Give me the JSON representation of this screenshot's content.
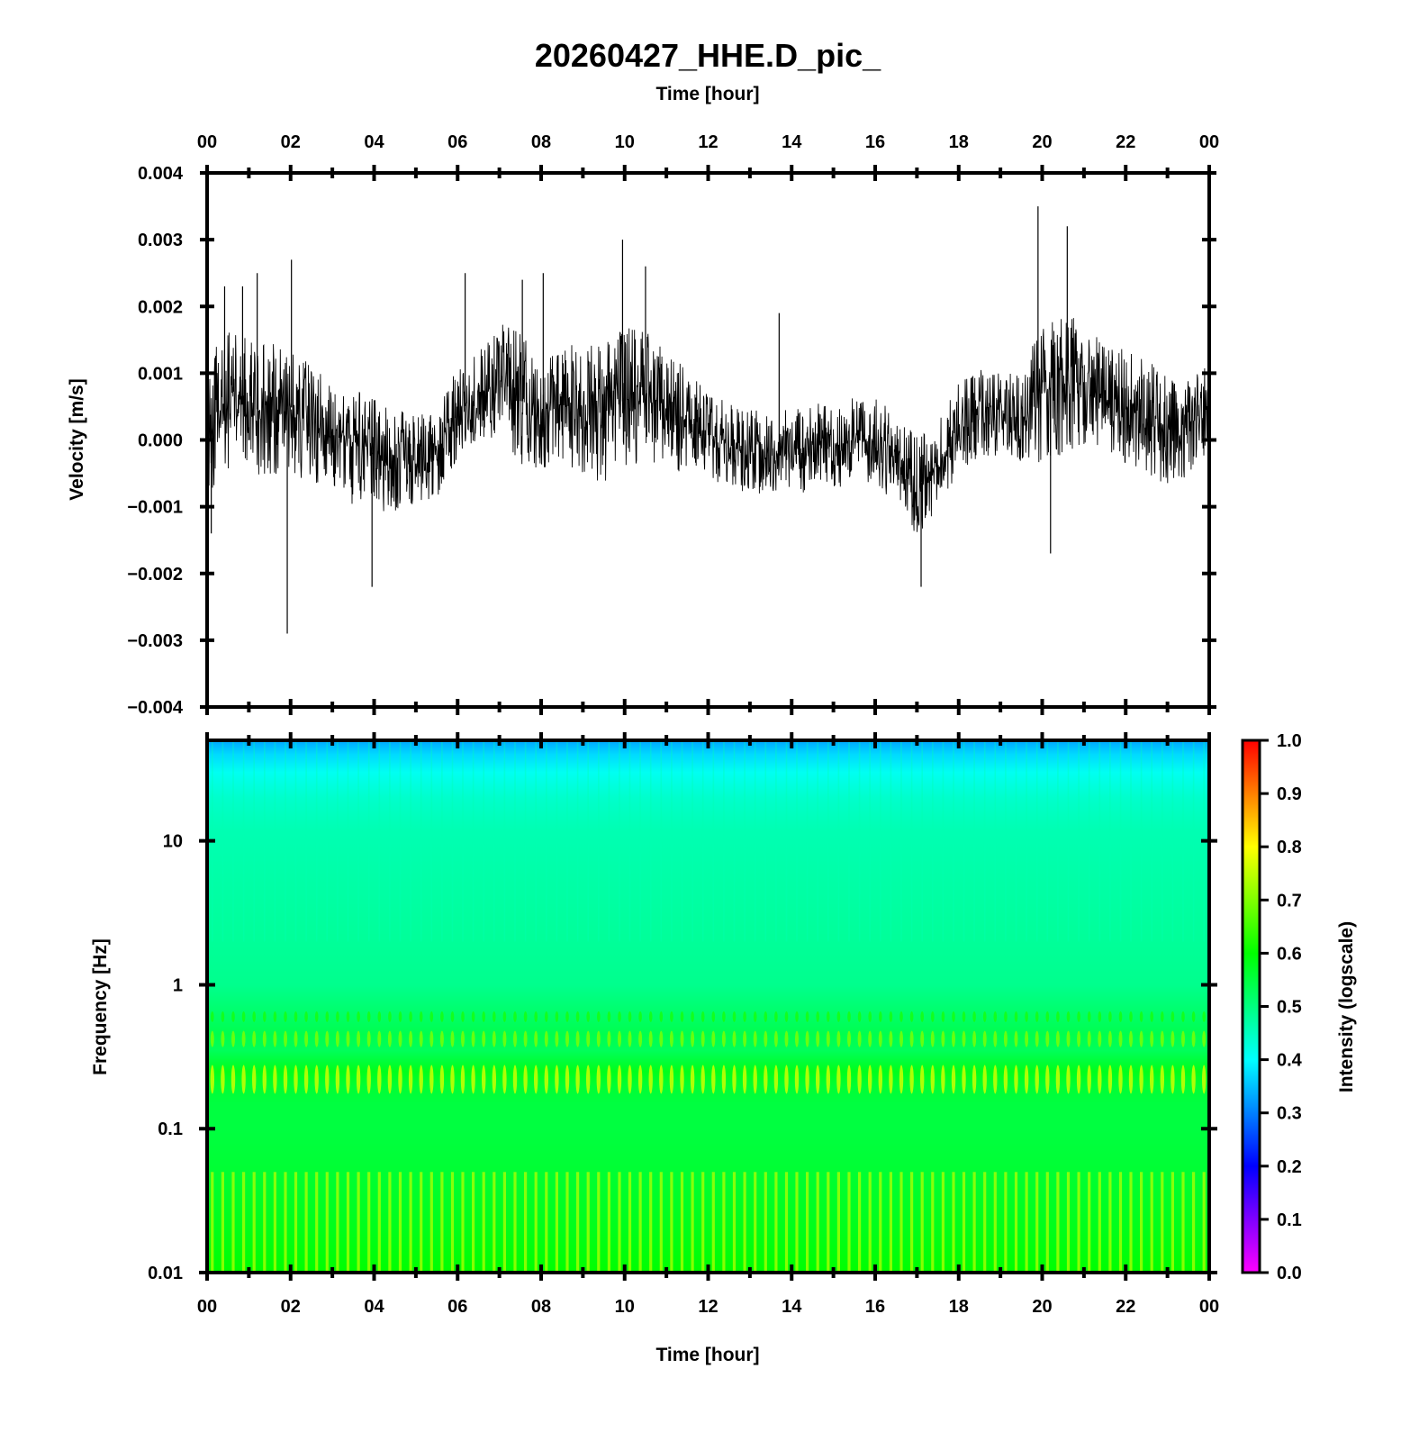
{
  "chart_data": [
    {
      "type": "line",
      "title": "20260427_HHE.D_pic_",
      "xlabel_top": "Time [hour]",
      "ylabel": "Velocity [m/s]",
      "x_tick_labels": [
        "00",
        "02",
        "04",
        "06",
        "08",
        "10",
        "12",
        "14",
        "16",
        "18",
        "20",
        "22",
        "00"
      ],
      "x_range_hours": [
        0,
        24
      ],
      "y_tick_labels": [
        "0.004",
        "0.003",
        "0.002",
        "0.001",
        "0.000",
        "−0.001",
        "−0.002",
        "−0.003",
        "−0.004"
      ],
      "ylim": [
        -0.004,
        0.004
      ],
      "series": [
        {
          "name": "HHE velocity trace",
          "x_hours": [
            0,
            0.5,
            1,
            1.5,
            2,
            2.5,
            3,
            3.5,
            4,
            4.5,
            5,
            5.5,
            6,
            6.5,
            7,
            7.5,
            8,
            8.5,
            9,
            9.5,
            10,
            10.5,
            11,
            11.5,
            12,
            12.5,
            13,
            13.5,
            14,
            14.5,
            15,
            15.5,
            16,
            16.5,
            17,
            17.5,
            18,
            18.5,
            19,
            19.5,
            20,
            20.5,
            21,
            21.5,
            22,
            22.5,
            23,
            23.5,
            24
          ],
          "baseline": [
            0.0002,
            0.0006,
            0.0005,
            0.0004,
            0.0005,
            0.0002,
            0.0001,
            -0.0001,
            -0.0002,
            -0.0003,
            -0.0003,
            -0.0002,
            0.0004,
            0.0007,
            0.0009,
            0.0006,
            0.0004,
            0.0005,
            0.0005,
            0.0004,
            0.0006,
            0.0007,
            0.0004,
            0.0003,
            0.0001,
            -0.0001,
            -0.0002,
            -0.0002,
            -0.0002,
            -0.0001,
            -0.0001,
            0.0,
            0.0,
            -0.0003,
            -0.0007,
            -0.0004,
            0.0002,
            0.0004,
            0.0004,
            0.0003,
            0.0007,
            0.0009,
            0.0008,
            0.0006,
            0.0005,
            0.0003,
            0.0002,
            0.0002,
            0.0005
          ],
          "amplitude": [
            0.001,
            0.001,
            0.0009,
            0.001,
            0.0009,
            0.0008,
            0.0007,
            0.0008,
            0.0008,
            0.0007,
            0.0006,
            0.0006,
            0.0007,
            0.0006,
            0.0008,
            0.0009,
            0.0008,
            0.0008,
            0.0009,
            0.001,
            0.001,
            0.0009,
            0.0008,
            0.0007,
            0.0006,
            0.0006,
            0.0006,
            0.0006,
            0.0006,
            0.0006,
            0.0006,
            0.0006,
            0.0006,
            0.0006,
            0.0007,
            0.0006,
            0.0006,
            0.0006,
            0.0006,
            0.0006,
            0.001,
            0.001,
            0.0008,
            0.0008,
            0.0008,
            0.0008,
            0.0008,
            0.0007,
            0.0006
          ],
          "spikes": [
            {
              "t": 0.1,
              "v": -0.0014
            },
            {
              "t": 0.42,
              "v": 0.0023
            },
            {
              "t": 0.85,
              "v": 0.0023
            },
            {
              "t": 1.2,
              "v": 0.0025
            },
            {
              "t": 1.92,
              "v": -0.0029
            },
            {
              "t": 2.02,
              "v": 0.0027
            },
            {
              "t": 3.95,
              "v": -0.0022
            },
            {
              "t": 6.18,
              "v": 0.0025
            },
            {
              "t": 7.55,
              "v": 0.0024
            },
            {
              "t": 8.05,
              "v": 0.0025
            },
            {
              "t": 9.95,
              "v": 0.003
            },
            {
              "t": 10.5,
              "v": 0.0026
            },
            {
              "t": 13.7,
              "v": 0.0019
            },
            {
              "t": 17.1,
              "v": -0.0022
            },
            {
              "t": 19.9,
              "v": 0.0035
            },
            {
              "t": 20.2,
              "v": -0.0017
            },
            {
              "t": 20.6,
              "v": 0.0032
            }
          ]
        }
      ]
    },
    {
      "type": "heatmap",
      "xlabel": "Time [hour]",
      "ylabel": "Frequency [Hz]",
      "yscale": "log",
      "ylim": [
        0.01,
        50
      ],
      "x_range_hours": [
        0,
        24
      ],
      "x_tick_labels": [
        "00",
        "02",
        "04",
        "06",
        "08",
        "10",
        "12",
        "14",
        "16",
        "18",
        "20",
        "22",
        "00"
      ],
      "y_tick_values": [
        10,
        1,
        0.1,
        0.01
      ],
      "y_tick_labels": [
        "10",
        "1",
        "0.1",
        "0.01"
      ],
      "stripe_count": 96,
      "intensity_profile": {
        "frequency_hz": [
          50,
          40,
          30,
          20,
          12,
          5,
          2,
          1,
          0.6,
          0.45,
          0.35,
          0.25,
          0.2,
          0.15,
          0.1,
          0.05,
          0.02,
          0.01
        ],
        "intensity": [
          0.33,
          0.37,
          0.41,
          0.44,
          0.46,
          0.47,
          0.48,
          0.49,
          0.52,
          0.54,
          0.53,
          0.58,
          0.56,
          0.55,
          0.55,
          0.56,
          0.58,
          0.6
        ]
      },
      "colorbar": {
        "label": "Intensity (logscale)",
        "range": [
          0.0,
          1.0
        ],
        "tick_labels": [
          "1.0",
          "0.9",
          "0.8",
          "0.7",
          "0.6",
          "0.5",
          "0.4",
          "0.3",
          "0.2",
          "0.1",
          "0.0"
        ],
        "stops": [
          "#ff00ff",
          "#8000ff",
          "#0000ff",
          "#0080ff",
          "#00ffff",
          "#00ff80",
          "#00ff00",
          "#80ff00",
          "#ffff00",
          "#ff8000",
          "#ff0000"
        ]
      }
    }
  ]
}
